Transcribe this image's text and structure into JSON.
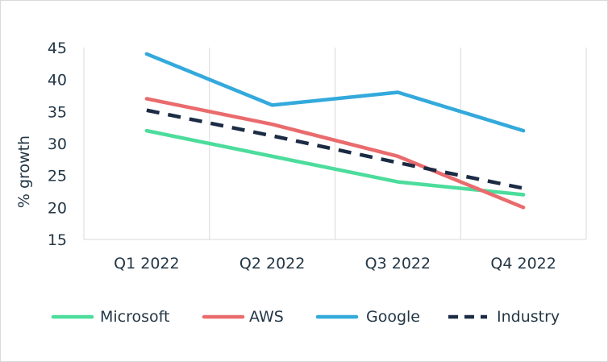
{
  "chart_data": {
    "type": "line",
    "title": "",
    "xlabel": "",
    "ylabel": "% growth",
    "categories": [
      "Q1 2022",
      "Q2 2022",
      "Q3 2022",
      "Q4 2022"
    ],
    "ylim": [
      15,
      45
    ],
    "yticks": [
      15,
      20,
      25,
      30,
      35,
      40,
      45
    ],
    "grid": "vertical",
    "legend": "bottom",
    "series": [
      {
        "name": "Microsoft",
        "values": [
          32,
          28,
          24,
          22
        ],
        "color": "#4cdc9c",
        "dash": "solid"
      },
      {
        "name": "AWS",
        "values": [
          37,
          33,
          28,
          20
        ],
        "color": "#ea6b6d",
        "dash": "solid"
      },
      {
        "name": "Google",
        "values": [
          44,
          36,
          38,
          32
        ],
        "color": "#33a9dc",
        "dash": "solid"
      },
      {
        "name": "Industry",
        "values": [
          35.2,
          31.2,
          27,
          23
        ],
        "color": "#1b2b44",
        "dash": "dashed"
      }
    ]
  }
}
